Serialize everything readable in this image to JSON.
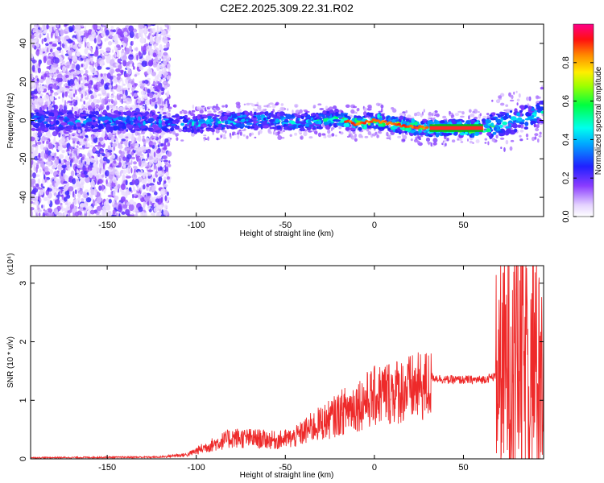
{
  "title": "C2E2.2025.309.22.31.R02",
  "colors": {
    "background": "#ffffff",
    "axis": "#000000",
    "snr_line": "#ee2a2a",
    "center_band": "#00c020",
    "core_red": "#ff2a2a"
  },
  "chart_data": [
    {
      "type": "heatmap",
      "name": "spectrogram",
      "xlabel": "Height of straight line (km)",
      "ylabel": "Frequency (Hz)",
      "xlim": [
        -193,
        95
      ],
      "ylim": [
        -50,
        50
      ],
      "xticks": [
        -150,
        -100,
        -50,
        0,
        50
      ],
      "xtick_labels": [
        "-150",
        "-100",
        "-50",
        "0",
        "50"
      ],
      "yticks": [
        -40,
        -20,
        0,
        20,
        40
      ],
      "ytick_labels": [
        "-40",
        "-20",
        "0",
        "20",
        "40"
      ],
      "grid": false,
      "colorbar": {
        "label": "Normalized spectral amplitude",
        "range": [
          0,
          1
        ],
        "ticks": [
          0,
          0.2,
          0.4,
          0.6,
          0.8
        ],
        "tick_labels": [
          "0.0",
          "0.2",
          "0.4",
          "0.6",
          "0.8"
        ],
        "colormap": "rainbow: white-violet-blue-cyan-green-yellow-orange-red-magenta"
      },
      "ridge": [
        {
          "x": -193,
          "f": 0,
          "amp": 0.35
        },
        {
          "x": -115,
          "f": -1,
          "amp": 0.4
        },
        {
          "x": -100,
          "f": -2,
          "amp": 0.45
        },
        {
          "x": -80,
          "f": 0,
          "amp": 0.5
        },
        {
          "x": -60,
          "f": 0,
          "amp": 0.5
        },
        {
          "x": -40,
          "f": -1,
          "amp": 0.45
        },
        {
          "x": -20,
          "f": 1,
          "amp": 0.55
        },
        {
          "x": -10,
          "f": -2,
          "amp": 0.85
        },
        {
          "x": 0,
          "f": 0,
          "amp": 0.8
        },
        {
          "x": 10,
          "f": -2,
          "amp": 0.75
        },
        {
          "x": 30,
          "f": -4,
          "amp": 0.7
        },
        {
          "x": 60,
          "f": -4,
          "amp": 0.9
        },
        {
          "x": 70,
          "f": -2,
          "amp": 0.5
        },
        {
          "x": 95,
          "f": 4,
          "amp": 0.45
        }
      ]
    },
    {
      "type": "line",
      "name": "snr",
      "xlabel": "Height of straight line (km)",
      "ylabel": "SNR (10 * v/v)",
      "scale_label": "(x10⁴)",
      "xlim": [
        -193,
        95
      ],
      "ylim": [
        0,
        3.3
      ],
      "xticks": [
        -150,
        -100,
        -50,
        0,
        50
      ],
      "xtick_labels": [
        "-150",
        "-100",
        "-50",
        "0",
        "50"
      ],
      "yticks": [
        0,
        1,
        2,
        3
      ],
      "ytick_labels": [
        "0",
        "1",
        "2",
        "3"
      ],
      "grid": false,
      "envelope": [
        {
          "x": -193,
          "y": 0.02
        },
        {
          "x": -120,
          "y": 0.03
        },
        {
          "x": -105,
          "y": 0.08
        },
        {
          "x": -95,
          "y": 0.22
        },
        {
          "x": -80,
          "y": 0.4
        },
        {
          "x": -65,
          "y": 0.38
        },
        {
          "x": -55,
          "y": 0.35
        },
        {
          "x": -45,
          "y": 0.4
        },
        {
          "x": -35,
          "y": 0.6
        },
        {
          "x": -25,
          "y": 0.75
        },
        {
          "x": -15,
          "y": 0.95
        },
        {
          "x": -5,
          "y": 1.1
        },
        {
          "x": 5,
          "y": 1.25
        },
        {
          "x": 15,
          "y": 1.3
        },
        {
          "x": 25,
          "y": 1.35
        },
        {
          "x": 32,
          "y": 1.4
        },
        {
          "x": 40,
          "y": 1.35
        },
        {
          "x": 50,
          "y": 1.35
        },
        {
          "x": 60,
          "y": 1.35
        },
        {
          "x": 67,
          "y": 1.4
        },
        {
          "x": 75,
          "y": 1.6
        },
        {
          "x": 80,
          "y": 1.8
        },
        {
          "x": 85,
          "y": 1.6
        },
        {
          "x": 90,
          "y": 1.7
        },
        {
          "x": 95,
          "y": 1.5
        }
      ]
    }
  ]
}
